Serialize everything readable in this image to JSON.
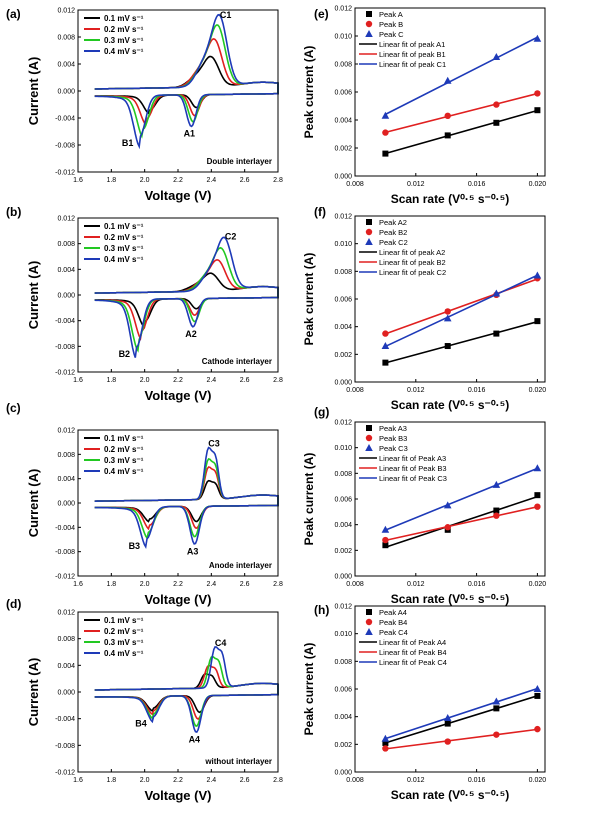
{
  "chart_data": [
    {
      "type": "line",
      "panel": "(a)",
      "xlabel": "Voltage (V)",
      "ylabel": "Current (A)",
      "xlim": [
        1.6,
        2.8
      ],
      "ylim": [
        -0.012,
        0.012
      ],
      "xticks": [
        "1.6",
        "1.8",
        "2.0",
        "2.2",
        "2.4",
        "2.6",
        "2.8"
      ],
      "yticks": [
        "-0.012",
        "-0.008",
        "-0.004",
        "0.000",
        "0.004",
        "0.008",
        "0.012"
      ],
      "legend": [
        "0.1 mV s⁻¹",
        "0.2 mV s⁻¹",
        "0.3 mV s⁻¹",
        "0.4 mV s⁻¹"
      ],
      "series_colors": [
        "#000000",
        "#e02020",
        "#22c822",
        "#1e3ab8"
      ],
      "note": "Double interlayer",
      "peaks": [
        {
          "label": "C1",
          "x": 2.45,
          "y": 0.0099
        },
        {
          "label": "A1",
          "x": 2.28,
          "y": -0.0047
        },
        {
          "label": "B1",
          "x": 1.97,
          "y": -0.0061
        }
      ],
      "cv": {
        "anodic": [
          2.4,
          2.42,
          2.44,
          2.45
        ],
        "ox": [
          0.0042,
          0.0066,
          0.0085,
          0.0099
        ],
        "c1v": [
          2.31,
          2.3,
          2.29,
          2.28
        ],
        "c1": [
          -0.0019,
          -0.0031,
          -0.004,
          -0.0047
        ],
        "c2v": [
          2.03,
          2.01,
          1.99,
          1.97
        ],
        "c2": [
          -0.0022,
          -0.0035,
          -0.005,
          -0.0061
        ],
        "double": false
      }
    },
    {
      "type": "line",
      "panel": "(b)",
      "xlabel": "Voltage (V)",
      "ylabel": "Current (A)",
      "xlim": [
        1.6,
        2.8
      ],
      "ylim": [
        -0.012,
        0.012
      ],
      "xticks": [
        "1.6",
        "1.8",
        "2.0",
        "2.2",
        "2.4",
        "2.6",
        "2.8"
      ],
      "yticks": [
        "-0.012",
        "-0.008",
        "-0.004",
        "0.000",
        "0.004",
        "0.008",
        "0.012"
      ],
      "legend": [
        "0.1 mV s⁻¹",
        "0.2 mV s⁻¹",
        "0.3 mV s⁻¹",
        "0.4 mV s⁻¹"
      ],
      "series_colors": [
        "#000000",
        "#e02020",
        "#22c822",
        "#1e3ab8"
      ],
      "note": "Cathode interlayer",
      "peaks": [
        {
          "label": "C2",
          "x": 2.48,
          "y": 0.0077
        },
        {
          "label": "A2",
          "x": 2.29,
          "y": -0.0044
        },
        {
          "label": "B2",
          "x": 1.95,
          "y": -0.0075
        }
      ],
      "cv": {
        "anodic": [
          2.4,
          2.44,
          2.46,
          2.48
        ],
        "ox": [
          0.0026,
          0.0045,
          0.0062,
          0.0077
        ],
        "c1v": [
          2.31,
          2.3,
          2.3,
          2.29
        ],
        "c1": [
          -0.0016,
          -0.0026,
          -0.0036,
          -0.0044
        ],
        "c2v": [
          2.0,
          1.98,
          1.96,
          1.95
        ],
        "c2": [
          -0.0035,
          -0.005,
          -0.0064,
          -0.0075
        ],
        "double": false
      }
    },
    {
      "type": "line",
      "panel": "(c)",
      "xlabel": "Voltage (V)",
      "ylabel": "Current (A)",
      "xlim": [
        1.6,
        2.8
      ],
      "ylim": [
        -0.012,
        0.012
      ],
      "xticks": [
        "1.6",
        "1.8",
        "2.0",
        "2.2",
        "2.4",
        "2.6",
        "2.8"
      ],
      "yticks": [
        "-0.012",
        "-0.008",
        "-0.004",
        "0.000",
        "0.004",
        "0.008",
        "0.012"
      ],
      "legend": [
        "0.1 mV s⁻¹",
        "0.2 mV s⁻¹",
        "0.3 mV s⁻¹",
        "0.4 mV s⁻¹"
      ],
      "series_colors": [
        "#000000",
        "#e02020",
        "#22c822",
        "#1e3ab8"
      ],
      "note": "Anode interlayer",
      "peaks": [
        {
          "label": "C3",
          "x": 2.38,
          "y": 0.0083
        },
        {
          "label": "A3",
          "x": 2.3,
          "y": -0.0062
        },
        {
          "label": "B3",
          "x": 2.01,
          "y": -0.0053
        }
      ],
      "cv": {
        "anodic": [
          2.38,
          2.38,
          2.38,
          2.38
        ],
        "ox": [
          0.003,
          0.0052,
          0.0065,
          0.0083
        ],
        "c1v": [
          2.31,
          2.31,
          2.3,
          2.3
        ],
        "c1": [
          -0.0025,
          -0.0036,
          -0.005,
          -0.0062
        ],
        "c2v": [
          2.03,
          2.03,
          2.02,
          2.01
        ],
        "c2": [
          -0.002,
          -0.003,
          -0.0042,
          -0.0053
        ],
        "double": true
      }
    },
    {
      "type": "line",
      "panel": "(d)",
      "xlabel": "Voltage (V)",
      "ylabel": "Current (A)",
      "xlim": [
        1.6,
        2.8
      ],
      "ylim": [
        -0.012,
        0.012
      ],
      "xticks": [
        "1.6",
        "1.8",
        "2.0",
        "2.2",
        "2.4",
        "2.6",
        "2.8"
      ],
      "yticks": [
        "-0.012",
        "-0.008",
        "-0.004",
        "0.000",
        "0.004",
        "0.008",
        "0.012"
      ],
      "legend": [
        "0.1 mV s⁻¹",
        "0.2 mV s⁻¹",
        "0.3 mV s⁻¹",
        "0.4 mV s⁻¹"
      ],
      "series_colors": [
        "#000000",
        "#e02020",
        "#22c822",
        "#1e3ab8"
      ],
      "note": "without interlayer",
      "peaks": [
        {
          "label": "C4",
          "x": 2.42,
          "y": 0.006
        },
        {
          "label": "A4",
          "x": 2.31,
          "y": -0.0055
        },
        {
          "label": "B4",
          "x": 2.05,
          "y": -0.0031
        }
      ],
      "cv": {
        "anodic": [
          2.36,
          2.38,
          2.4,
          2.42
        ],
        "ox": [
          0.0021,
          0.0033,
          0.0046,
          0.006
        ],
        "c1v": [
          2.33,
          2.32,
          2.31,
          2.31
        ],
        "c1": [
          -0.0025,
          -0.0035,
          -0.0046,
          -0.0055
        ],
        "c2v": [
          2.05,
          2.05,
          2.05,
          2.05
        ],
        "c2": [
          -0.0018,
          -0.0022,
          -0.0027,
          -0.0031
        ],
        "double": true
      }
    },
    {
      "type": "scatter",
      "panel": "(e)",
      "xlabel": "Scan rate (V⁰·⁵ s⁻⁰·⁵)",
      "ylabel": "Peak current (A)",
      "xlim": [
        0.008,
        0.0205
      ],
      "ylim": [
        0.0,
        0.012
      ],
      "xticks": [
        "0.008",
        "0.012",
        "0.016",
        "0.020"
      ],
      "yticks": [
        "0.000",
        "0.002",
        "0.004",
        "0.006",
        "0.008",
        "0.010",
        "0.012"
      ],
      "x": [
        0.01,
        0.0141,
        0.0173,
        0.02
      ],
      "series": [
        {
          "name": "Peak A",
          "values": [
            0.0016,
            0.0029,
            0.0038,
            0.0047
          ],
          "color": "#000000",
          "marker": "square"
        },
        {
          "name": "Peak B",
          "values": [
            0.0031,
            0.0043,
            0.0051,
            0.0059
          ],
          "color": "#e02020",
          "marker": "circle"
        },
        {
          "name": "Peak C",
          "values": [
            0.0043,
            0.0068,
            0.0085,
            0.0098
          ],
          "color": "#1e3ab8",
          "marker": "triangle"
        }
      ],
      "fit_names": [
        "Linear fit of peak A1",
        "Linear fit of peak B1",
        "Linear fit of peak C1"
      ]
    },
    {
      "type": "scatter",
      "panel": "(f)",
      "xlabel": "Scan rate (V⁰·⁵ s⁻⁰·⁵)",
      "ylabel": "Peak current (A)",
      "xlim": [
        0.008,
        0.0205
      ],
      "ylim": [
        0.0,
        0.012
      ],
      "xticks": [
        "0.008",
        "0.012",
        "0.016",
        "0.020"
      ],
      "yticks": [
        "0.000",
        "0.002",
        "0.004",
        "0.006",
        "0.008",
        "0.010",
        "0.012"
      ],
      "x": [
        0.01,
        0.0141,
        0.0173,
        0.02
      ],
      "series": [
        {
          "name": "Peak A2",
          "values": [
            0.0014,
            0.0026,
            0.0035,
            0.0044
          ],
          "color": "#000000",
          "marker": "square"
        },
        {
          "name": "Peak B2",
          "values": [
            0.0035,
            0.0051,
            0.0063,
            0.0075
          ],
          "color": "#e02020",
          "marker": "circle"
        },
        {
          "name": "Peak C2",
          "values": [
            0.0026,
            0.0046,
            0.0064,
            0.0077
          ],
          "color": "#1e3ab8",
          "marker": "triangle"
        }
      ],
      "fit_names": [
        "Linear fit of peak A2",
        "Linear fit of peak B2",
        "Linear fit of peak C2"
      ]
    },
    {
      "type": "scatter",
      "panel": "(g)",
      "xlabel": "Scan rate (V⁰·⁵ s⁻⁰·⁵)",
      "ylabel": "Peak current (A)",
      "xlim": [
        0.008,
        0.0205
      ],
      "ylim": [
        0.0,
        0.012
      ],
      "xticks": [
        "0.008",
        "0.012",
        "0.016",
        "0.020"
      ],
      "yticks": [
        "0.000",
        "0.002",
        "0.004",
        "0.006",
        "0.008",
        "0.010",
        "0.012"
      ],
      "x": [
        0.01,
        0.0141,
        0.0173,
        0.02
      ],
      "series": [
        {
          "name": "Peak A3",
          "values": [
            0.0024,
            0.0036,
            0.0051,
            0.0063
          ],
          "color": "#000000",
          "marker": "square"
        },
        {
          "name": "Peak B3",
          "values": [
            0.0028,
            0.0038,
            0.0047,
            0.0054
          ],
          "color": "#e02020",
          "marker": "circle"
        },
        {
          "name": "Peak C3",
          "values": [
            0.0036,
            0.0055,
            0.0071,
            0.0084
          ],
          "color": "#1e3ab8",
          "marker": "triangle"
        }
      ],
      "fit_names": [
        "Linear fit of Peak A3",
        "Linear fit of Peak B3",
        "Linear fit of Peak C3"
      ]
    },
    {
      "type": "scatter",
      "panel": "(h)",
      "xlabel": "Scan rate (V⁰·⁵ s⁻⁰·⁵)",
      "ylabel": "Peak current (A)",
      "xlim": [
        0.008,
        0.0205
      ],
      "ylim": [
        0.0,
        0.012
      ],
      "xticks": [
        "0.008",
        "0.012",
        "0.016",
        "0.020"
      ],
      "yticks": [
        "0.000",
        "0.002",
        "0.004",
        "0.006",
        "0.008",
        "0.010",
        "0.012"
      ],
      "x": [
        0.01,
        0.0141,
        0.0173,
        0.02
      ],
      "series": [
        {
          "name": "Peak A4",
          "values": [
            0.0021,
            0.0035,
            0.0046,
            0.0055
          ],
          "color": "#000000",
          "marker": "square"
        },
        {
          "name": "Peak B4",
          "values": [
            0.0017,
            0.0022,
            0.0027,
            0.0031
          ],
          "color": "#e02020",
          "marker": "circle"
        },
        {
          "name": "Peak C4",
          "values": [
            0.0024,
            0.0039,
            0.0051,
            0.006
          ],
          "color": "#1e3ab8",
          "marker": "triangle"
        }
      ],
      "fit_names": [
        "Linear fit of Peak A4",
        "Linear fit of Peak B4",
        "Linear fit of Peak C4"
      ]
    }
  ]
}
